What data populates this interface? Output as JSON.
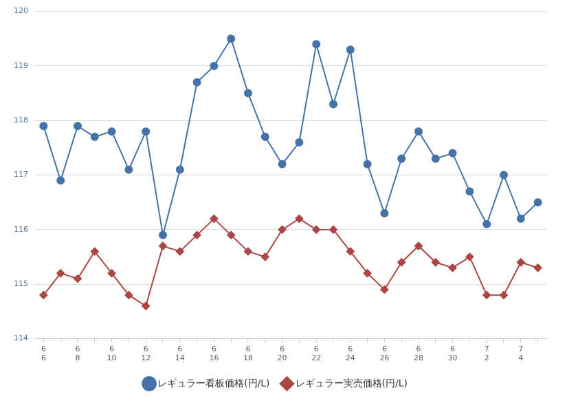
{
  "chart_data": {
    "type": "line",
    "categories": [
      [
        "6",
        "6"
      ],
      null,
      [
        "6",
        "8"
      ],
      null,
      [
        "6",
        "10"
      ],
      null,
      [
        "6",
        "12"
      ],
      null,
      [
        "6",
        "14"
      ],
      null,
      [
        "6",
        "16"
      ],
      null,
      [
        "6",
        "18"
      ],
      null,
      [
        "6",
        "20"
      ],
      null,
      [
        "6",
        "22"
      ],
      null,
      [
        "6",
        "24"
      ],
      null,
      [
        "6",
        "26"
      ],
      null,
      [
        "6",
        "28"
      ],
      null,
      [
        "6",
        "30"
      ],
      null,
      [
        "7",
        "2"
      ],
      null,
      [
        "7",
        "4"
      ],
      null
    ],
    "series": [
      {
        "name": "レギュラー看板価格(円/L)",
        "color": "#4572a7",
        "marker": "circle",
        "line_style": "solid",
        "values": [
          117.9,
          116.9,
          117.9,
          117.7,
          117.8,
          117.1,
          117.8,
          115.9,
          117.1,
          118.7,
          119.0,
          119.5,
          118.5,
          117.7,
          117.2,
          117.6,
          119.4,
          118.3,
          119.3,
          117.2,
          116.3,
          117.3,
          117.8,
          117.3,
          117.4,
          116.7,
          116.1,
          117.0,
          116.2,
          116.5
        ]
      },
      {
        "name": "レギュラー実売価格(円/L)",
        "color": "#aa4643",
        "marker": "diamond",
        "line_style": "solid",
        "values": [
          114.8,
          115.2,
          115.1,
          115.6,
          115.2,
          114.8,
          114.6,
          115.7,
          115.6,
          115.9,
          116.2,
          115.9,
          115.6,
          115.5,
          116.0,
          116.2,
          116.0,
          116.0,
          115.6,
          115.2,
          114.9,
          115.4,
          115.7,
          115.4,
          115.3,
          115.5,
          114.8,
          114.8,
          115.4,
          115.3
        ]
      }
    ],
    "ylim": [
      114,
      120
    ],
    "yticks": [
      114,
      115,
      116,
      117,
      118,
      119,
      120
    ],
    "grid": true,
    "legend": "bottom"
  }
}
